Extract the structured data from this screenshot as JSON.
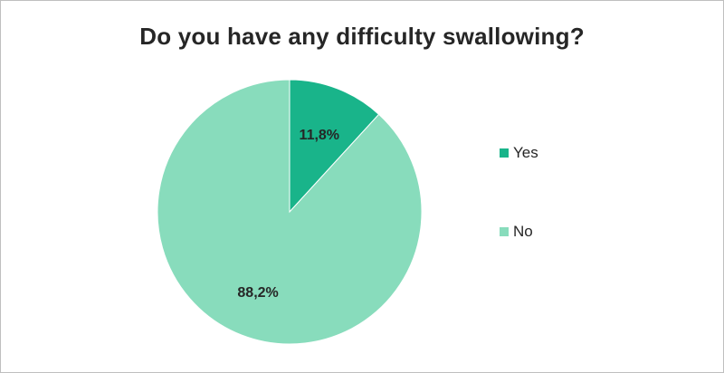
{
  "chart_data": {
    "type": "pie",
    "title": "Do you have any difficulty swallowing?",
    "categories": [
      "Yes",
      "No"
    ],
    "values": [
      11.8,
      88.2
    ],
    "data_labels": [
      "11,8%",
      "88,2%"
    ],
    "colors": [
      "#19b48a",
      "#88dcbc"
    ],
    "start_angle_deg": 0,
    "direction": "clockwise",
    "legend": {
      "position": "right",
      "entries": [
        {
          "label": "Yes",
          "color": "#19b48a"
        },
        {
          "label": "No",
          "color": "#88dcbc"
        }
      ]
    }
  }
}
